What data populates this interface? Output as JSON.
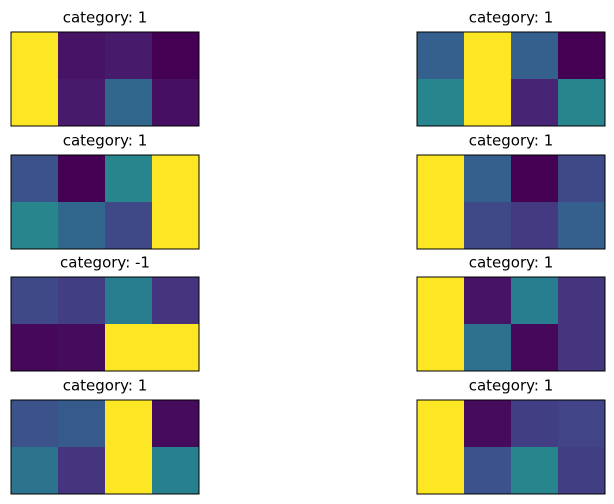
{
  "chart_data": [
    {
      "type": "heatmap",
      "title": "category: 1",
      "values": [
        [
          1,
          0.05,
          0.07,
          0.0
        ],
        [
          1,
          0.07,
          0.33,
          0.04
        ]
      ]
    },
    {
      "type": "heatmap",
      "title": "category: 1",
      "values": [
        [
          0.3,
          1,
          0.3,
          0.0
        ],
        [
          0.45,
          1,
          0.1,
          0.45
        ]
      ]
    },
    {
      "type": "heatmap",
      "title": "category: 1",
      "values": [
        [
          0.25,
          0.0,
          0.45,
          1
        ],
        [
          0.45,
          0.33,
          0.22,
          1
        ]
      ]
    },
    {
      "type": "heatmap",
      "title": "category: 1",
      "values": [
        [
          1,
          0.3,
          0.0,
          0.22
        ],
        [
          1,
          0.22,
          0.17,
          0.3
        ]
      ]
    },
    {
      "type": "heatmap",
      "title": "category: -1",
      "values": [
        [
          0.22,
          0.18,
          0.42,
          0.15
        ],
        [
          0.02,
          0.03,
          1,
          1
        ]
      ]
    },
    {
      "type": "heatmap",
      "title": "category: 1",
      "values": [
        [
          1,
          0.05,
          0.42,
          0.15
        ],
        [
          1,
          0.37,
          0.02,
          0.15
        ]
      ]
    },
    {
      "type": "heatmap",
      "title": "category: 1",
      "values": [
        [
          0.25,
          0.28,
          1,
          0.03
        ],
        [
          0.38,
          0.15,
          1,
          0.43
        ]
      ]
    },
    {
      "type": "heatmap",
      "title": "category: 1",
      "values": [
        [
          1,
          0.03,
          0.18,
          0.2
        ],
        [
          1,
          0.25,
          0.45,
          0.18
        ]
      ]
    }
  ]
}
